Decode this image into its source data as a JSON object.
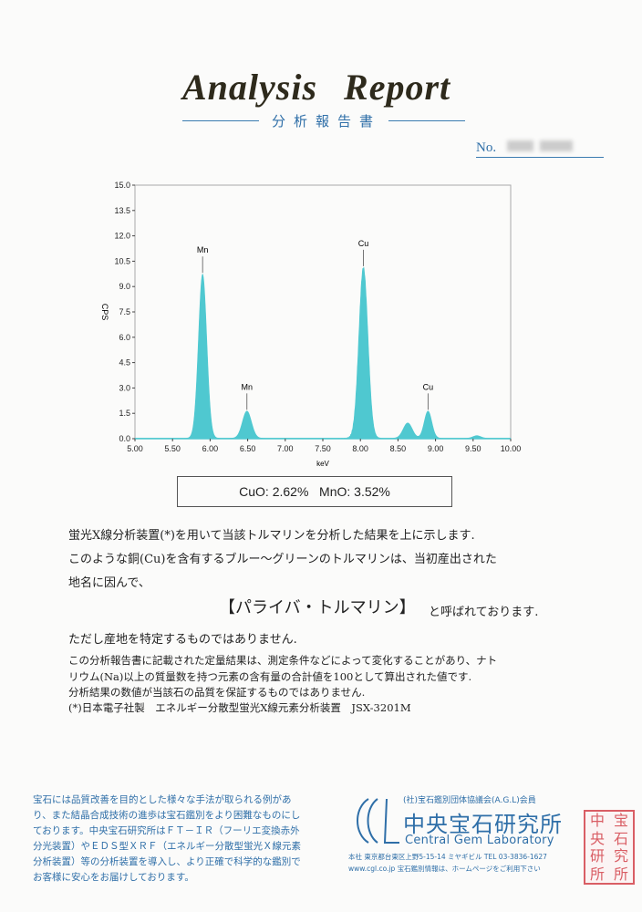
{
  "header": {
    "title": "Analysis   Report",
    "subtitle": "分析報告書",
    "no_label": "No."
  },
  "chart_data": {
    "type": "area",
    "xlabel": "keV",
    "ylabel": "CPS",
    "xlim": [
      5.0,
      10.0
    ],
    "ylim": [
      0.0,
      15.0
    ],
    "xticks": [
      "5.00",
      "5.50",
      "6.00",
      "6.50",
      "7.00",
      "7.50",
      "8.00",
      "8.50",
      "9.00",
      "9.50",
      "10.00"
    ],
    "yticks": [
      "0.0",
      "1.5",
      "3.0",
      "4.5",
      "6.0",
      "7.5",
      "9.0",
      "10.5",
      "12.0",
      "13.5",
      "15.0"
    ],
    "peaks": [
      {
        "energy": 5.9,
        "cps": 9.7,
        "label": "Mn"
      },
      {
        "energy": 6.49,
        "cps": 1.6,
        "label": "Mn"
      },
      {
        "energy": 8.04,
        "cps": 10.1,
        "label": "Cu"
      },
      {
        "energy": 8.63,
        "cps": 0.9,
        "label": ""
      },
      {
        "energy": 8.9,
        "cps": 1.6,
        "label": "Cu"
      },
      {
        "energy": 9.55,
        "cps": 0.15,
        "label": ""
      }
    ],
    "color": "#4fc8d0",
    "grid": false
  },
  "composition": {
    "text": "CuO: 2.62%   MnO: 3.52%"
  },
  "body": {
    "line1": "蛍光X線分析装置(*)を用いて当該トルマリンを分析した結果を上に示します.",
    "line2": "このような銅(Cu)を含有するブルー〜グリーンのトルマリンは、当初産出された",
    "line3": "地名に因んで、",
    "paraiba": "【パライバ・トルマリン】",
    "called": "と呼ばれております.",
    "line4": "ただし産地を特定するものではありません.",
    "note1": "この分析報告書に記載された定量結果は、測定条件などによって変化することがあり、ナト",
    "note2": "リウム(Na)以上の質量数を持つ元素の含有量の合計値を100として算出された値です.",
    "note3": "分析結果の数値が当該石の品質を保証するものではありません.",
    "note4": "(*)日本電子社製　エネルギー分散型蛍光X線元素分析装置　JSX-3201M"
  },
  "footer": {
    "left_text": "宝石には品質改善を目的とした様々な手法が取られる例があり、また結晶合成技術の進歩は宝石鑑別をより困難なものにしております。中央宝石研究所はＦＴ－ＩＲ（フーリエ変換赤外分光装置）やＥＤＳ型ＸＲＦ（エネルギー分散型蛍光Ｘ線元素分析装置）等の分析装置を導入し、より正確で科学的な鑑別でお客様に安心をお届けしております。",
    "agl": "(社)宝石鑑別団体協議会(A.G.L)会員",
    "lab_jp": "中央宝石研究所",
    "lab_en": "Central Gem Laboratory",
    "address": "本社 東京都台東区上野5-15-14 ミヤギビル TEL 03-3836-1627",
    "web": "www.cgl.co.jp  宝石鑑別情報は、ホームページをご利用下さい",
    "seal": [
      "中",
      "宝",
      "央",
      "石",
      "研",
      "究",
      "所",
      "所"
    ],
    "brand_color": "#2f6fa8",
    "seal_color": "#d4434c"
  }
}
